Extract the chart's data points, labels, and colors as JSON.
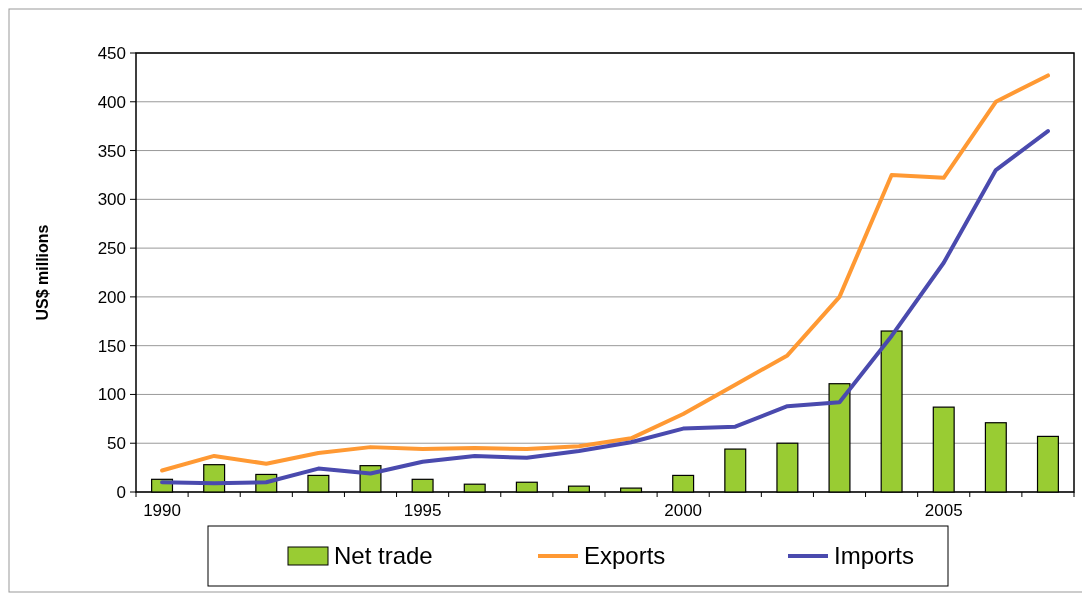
{
  "chart_data": {
    "type": "bar",
    "ylabel": "US$ millions",
    "categories": [
      "1990",
      null,
      null,
      null,
      null,
      "1995",
      null,
      null,
      null,
      null,
      "2000",
      null,
      null,
      null,
      null,
      "2005",
      null,
      null
    ],
    "series": [
      {
        "name": "Net trade",
        "color": "#99cc33",
        "values": [
          13,
          28,
          18,
          17,
          27,
          13,
          8,
          10,
          6,
          4,
          17,
          44,
          50,
          111,
          165,
          87,
          71,
          57
        ]
      },
      {
        "name": "Exports",
        "type": "line",
        "color": "#ff9933",
        "values": [
          22,
          37,
          29,
          40,
          46,
          44,
          45,
          44,
          47,
          55,
          80,
          110,
          140,
          200,
          325,
          322,
          400,
          427
        ]
      },
      {
        "name": "Imports",
        "type": "line",
        "color": "#4a4aae",
        "values": [
          10,
          9,
          10,
          24,
          19,
          31,
          37,
          35,
          42,
          51,
          65,
          67,
          88,
          92,
          160,
          235,
          330,
          370
        ]
      }
    ],
    "ylim": [
      0,
      450
    ],
    "yticks": [
      0,
      50,
      100,
      150,
      200,
      250,
      300,
      350,
      400,
      450
    ],
    "grid": "y",
    "legend": "bottom"
  }
}
